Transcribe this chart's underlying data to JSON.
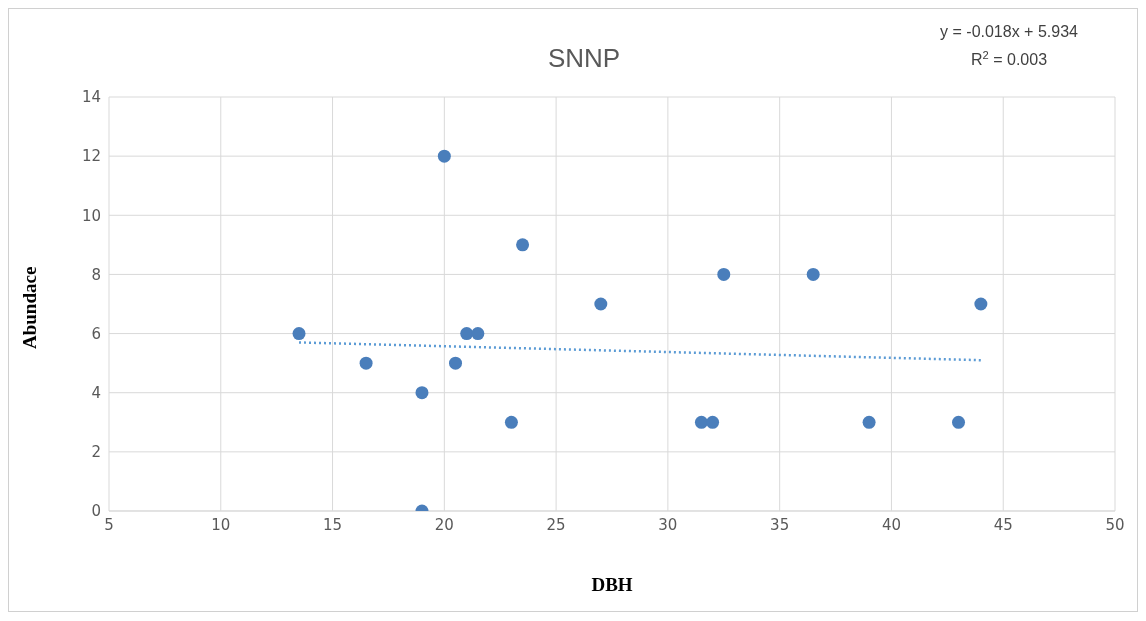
{
  "chart_data": {
    "type": "scatter",
    "title": "SNNP",
    "xlabel": "DBH",
    "ylabel": "Abundace",
    "annotations": [
      "y = -0.018x + 5.934",
      "R$^{2}$ = 0.003"
    ],
    "xlim": [
      5,
      50
    ],
    "xticks": [
      5,
      10,
      15,
      20,
      25,
      30,
      35,
      40,
      45,
      50
    ],
    "ylim": [
      0,
      14
    ],
    "yticks": [
      0,
      2,
      4,
      6,
      8,
      10,
      12,
      14
    ],
    "grid": true,
    "marker": "circle",
    "series": [
      {
        "color": "#4a7ebb",
        "x": [
          13.5,
          16.5,
          19,
          19,
          20,
          20.5,
          21,
          21.5,
          23,
          23.5,
          27,
          31.5,
          32,
          32.5,
          36.5,
          39,
          43,
          44
        ],
        "values": [
          6,
          5,
          4,
          0,
          12,
          5,
          6,
          6,
          3,
          9,
          7,
          3,
          3,
          8,
          8,
          3,
          3,
          7
        ]
      },
      {
        "type": "line",
        "color": "#5b9bd5",
        "line_style": "dotted",
        "marker": "none",
        "x": [
          13.5,
          44
        ],
        "values": [
          5.7,
          5.1
        ]
      }
    ]
  }
}
